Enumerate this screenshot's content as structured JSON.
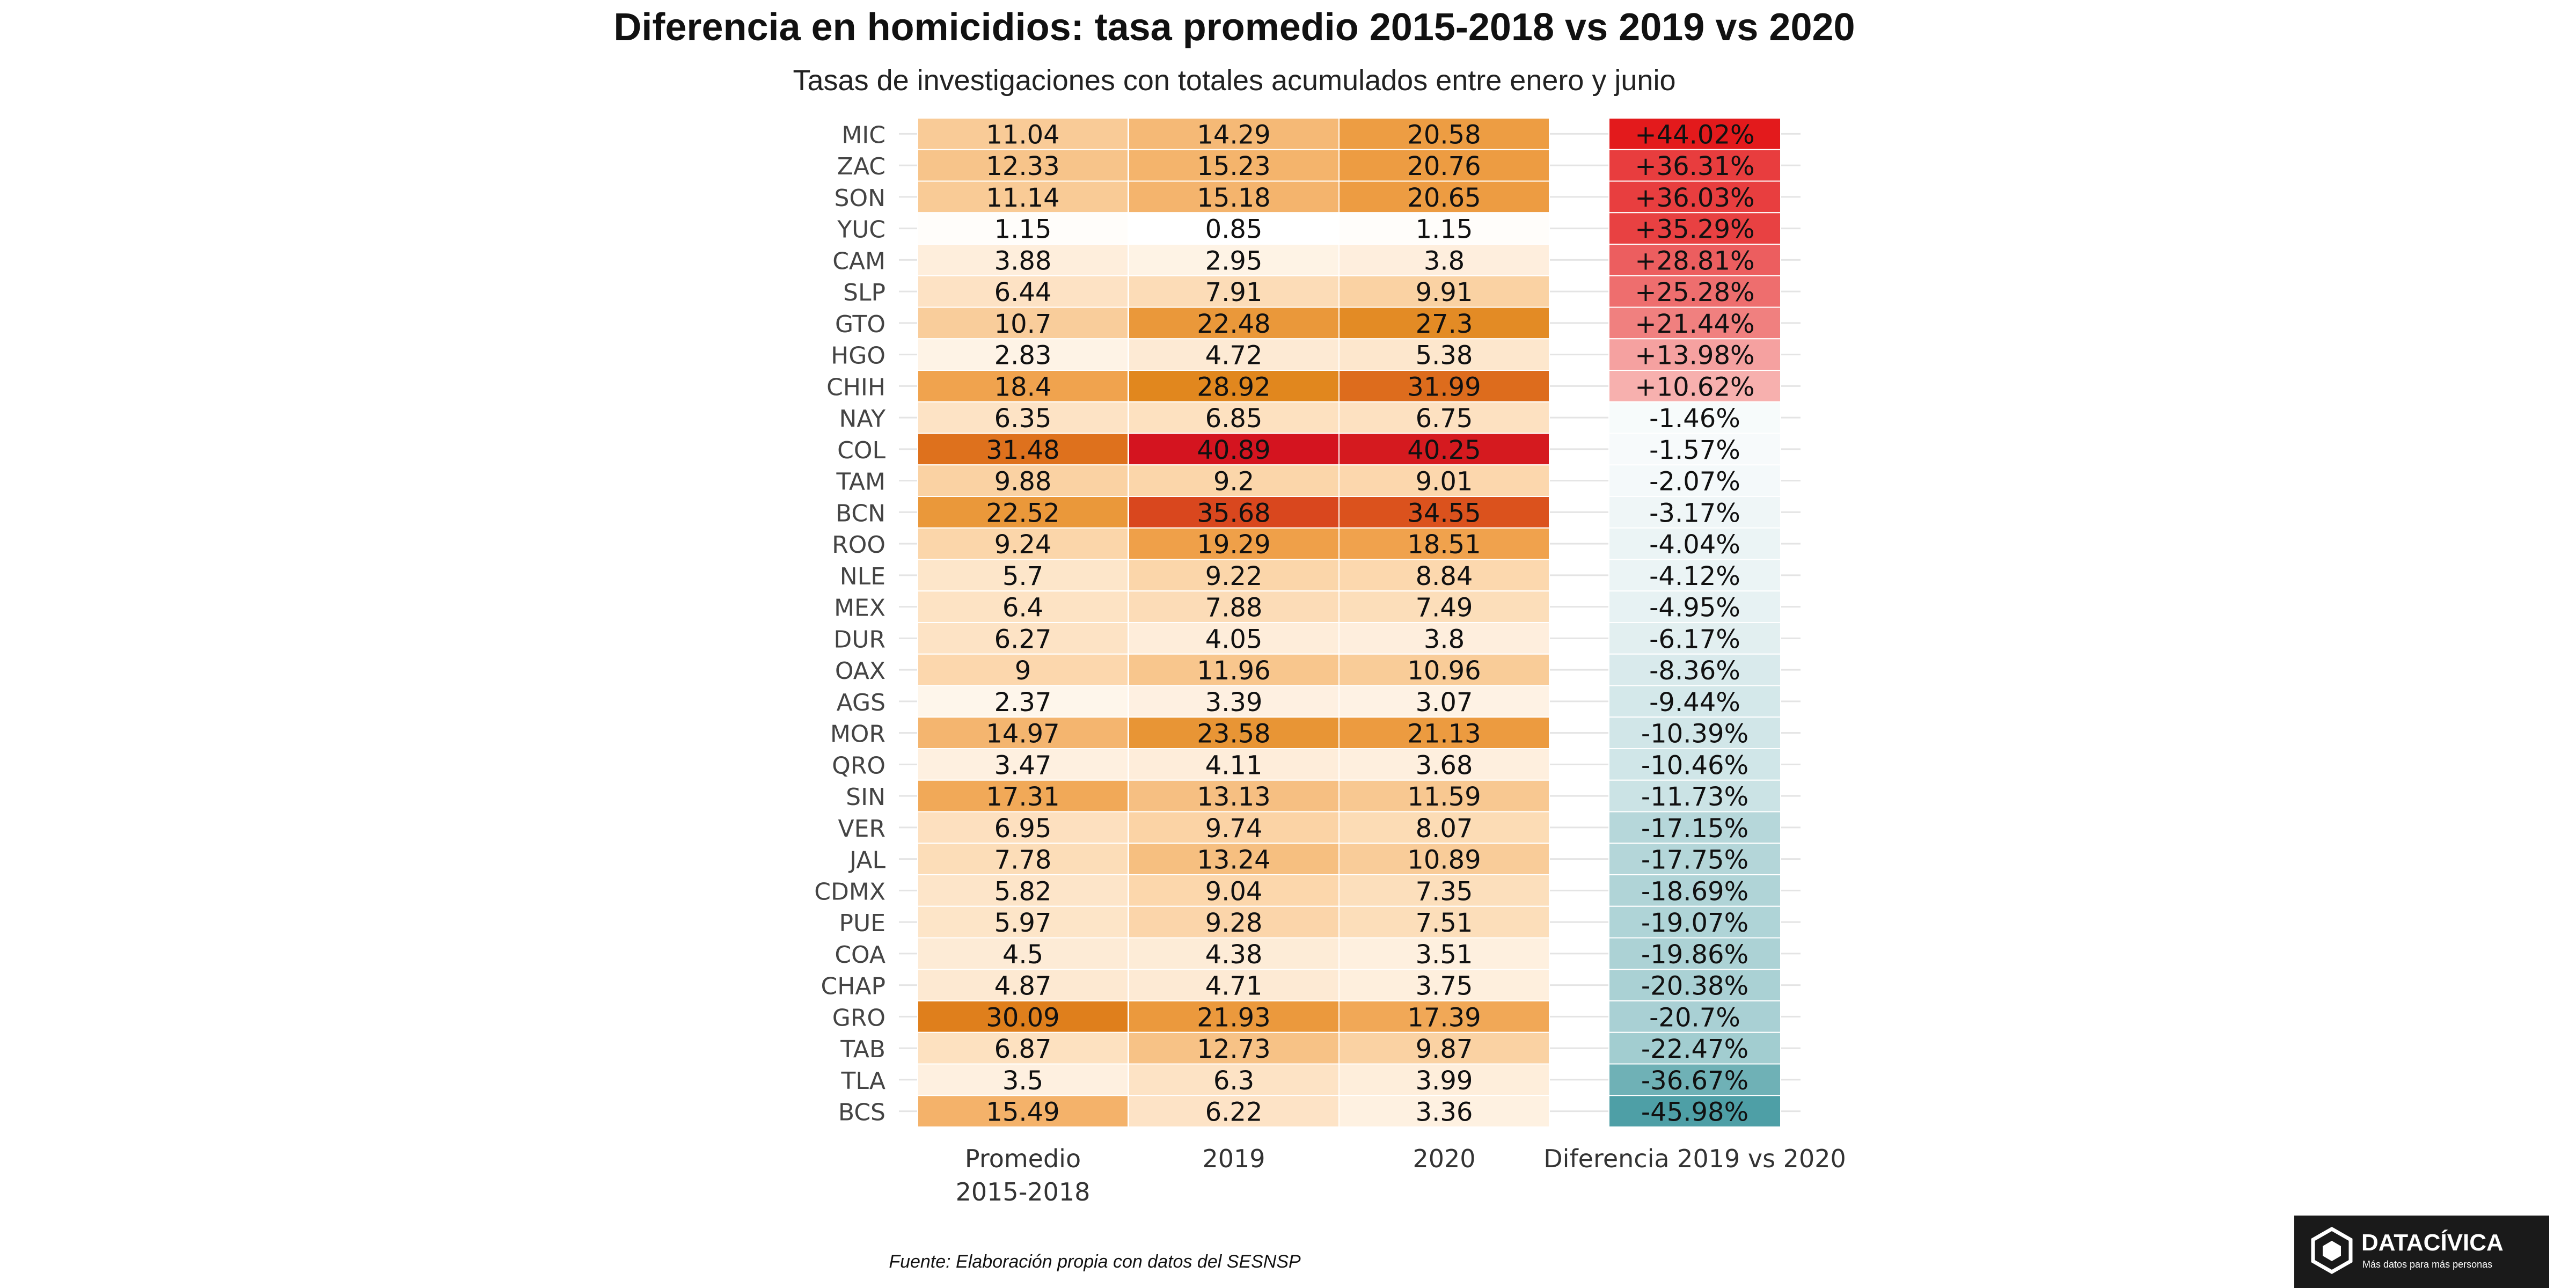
{
  "chart_data": {
    "type": "heatmap",
    "title": "Diferencia en homicidios: tasa promedio 2015-2018 vs 2019 vs 2020",
    "subtitle": "Tasas de investigaciones con totales acumulados entre enero y junio",
    "columns": [
      "Promedio\n2015-2018",
      "2019",
      "2020"
    ],
    "diff_column": "Diferencia 2019 vs 2020",
    "rows": [
      {
        "state": "MIC",
        "values": [
          11.04,
          14.29,
          20.58
        ],
        "diff": 44.02,
        "diff_label": "+44.02%"
      },
      {
        "state": "ZAC",
        "values": [
          12.33,
          15.23,
          20.76
        ],
        "diff": 36.31,
        "diff_label": "+36.31%"
      },
      {
        "state": "SON",
        "values": [
          11.14,
          15.18,
          20.65
        ],
        "diff": 36.03,
        "diff_label": "+36.03%"
      },
      {
        "state": "YUC",
        "values": [
          1.15,
          0.85,
          1.15
        ],
        "diff": 35.29,
        "diff_label": "+35.29%"
      },
      {
        "state": "CAM",
        "values": [
          3.88,
          2.95,
          3.8
        ],
        "diff": 28.81,
        "diff_label": "+28.81%"
      },
      {
        "state": "SLP",
        "values": [
          6.44,
          7.91,
          9.91
        ],
        "diff": 25.28,
        "diff_label": "+25.28%"
      },
      {
        "state": "GTO",
        "values": [
          10.7,
          22.48,
          27.3
        ],
        "diff": 21.44,
        "diff_label": "+21.44%"
      },
      {
        "state": "HGO",
        "values": [
          2.83,
          4.72,
          5.38
        ],
        "diff": 13.98,
        "diff_label": "+13.98%"
      },
      {
        "state": "CHIH",
        "values": [
          18.4,
          28.92,
          31.99
        ],
        "diff": 10.62,
        "diff_label": "+10.62%"
      },
      {
        "state": "NAY",
        "values": [
          6.35,
          6.85,
          6.75
        ],
        "diff": -1.46,
        "diff_label": "-1.46%"
      },
      {
        "state": "COL",
        "values": [
          31.48,
          40.89,
          40.25
        ],
        "diff": -1.57,
        "diff_label": "-1.57%"
      },
      {
        "state": "TAM",
        "values": [
          9.88,
          9.2,
          9.01
        ],
        "diff": -2.07,
        "diff_label": "-2.07%"
      },
      {
        "state": "BCN",
        "values": [
          22.52,
          35.68,
          34.55
        ],
        "diff": -3.17,
        "diff_label": "-3.17%"
      },
      {
        "state": "ROO",
        "values": [
          9.24,
          19.29,
          18.51
        ],
        "diff": -4.04,
        "diff_label": "-4.04%"
      },
      {
        "state": "NLE",
        "values": [
          5.7,
          9.22,
          8.84
        ],
        "diff": -4.12,
        "diff_label": "-4.12%"
      },
      {
        "state": "MEX",
        "values": [
          6.4,
          7.88,
          7.49
        ],
        "diff": -4.95,
        "diff_label": "-4.95%"
      },
      {
        "state": "DUR",
        "values": [
          6.27,
          4.05,
          3.8
        ],
        "diff": -6.17,
        "diff_label": "-6.17%"
      },
      {
        "state": "OAX",
        "values": [
          9,
          11.96,
          10.96
        ],
        "diff": -8.36,
        "diff_label": "-8.36%"
      },
      {
        "state": "AGS",
        "values": [
          2.37,
          3.39,
          3.07
        ],
        "diff": -9.44,
        "diff_label": "-9.44%"
      },
      {
        "state": "MOR",
        "values": [
          14.97,
          23.58,
          21.13
        ],
        "diff": -10.39,
        "diff_label": "-10.39%"
      },
      {
        "state": "QRO",
        "values": [
          3.47,
          4.11,
          3.68
        ],
        "diff": -10.46,
        "diff_label": "-10.46%"
      },
      {
        "state": "SIN",
        "values": [
          17.31,
          13.13,
          11.59
        ],
        "diff": -11.73,
        "diff_label": "-11.73%"
      },
      {
        "state": "VER",
        "values": [
          6.95,
          9.74,
          8.07
        ],
        "diff": -17.15,
        "diff_label": "-17.15%"
      },
      {
        "state": "JAL",
        "values": [
          7.78,
          13.24,
          10.89
        ],
        "diff": -17.75,
        "diff_label": "-17.75%"
      },
      {
        "state": "CDMX",
        "values": [
          5.82,
          9.04,
          7.35
        ],
        "diff": -18.69,
        "diff_label": "-18.69%"
      },
      {
        "state": "PUE",
        "values": [
          5.97,
          9.28,
          7.51
        ],
        "diff": -19.07,
        "diff_label": "-19.07%"
      },
      {
        "state": "COA",
        "values": [
          4.5,
          4.38,
          3.51
        ],
        "diff": -19.86,
        "diff_label": "-19.86%"
      },
      {
        "state": "CHAP",
        "values": [
          4.87,
          4.71,
          3.75
        ],
        "diff": -20.38,
        "diff_label": "-20.38%"
      },
      {
        "state": "GRO",
        "values": [
          30.09,
          21.93,
          17.39
        ],
        "diff": -20.7,
        "diff_label": "-20.7%"
      },
      {
        "state": "TAB",
        "values": [
          6.87,
          12.73,
          9.87
        ],
        "diff": -22.47,
        "diff_label": "-22.47%"
      },
      {
        "state": "TLA",
        "values": [
          3.5,
          6.3,
          3.99
        ],
        "diff": -36.67,
        "diff_label": "-36.67%"
      },
      {
        "state": "BCS",
        "values": [
          15.49,
          6.22,
          3.36
        ],
        "diff": -45.98,
        "diff_label": "-45.98%"
      }
    ],
    "value_scale": {
      "min": 0.85,
      "max": 40.89,
      "colors": [
        "#ffffff",
        "#fcd9b0",
        "#f0a24c",
        "#e0861c",
        "#d4141f"
      ]
    },
    "diff_scale": {
      "positive_colors": [
        "#fde0dd",
        "#e31a1c"
      ],
      "negative_colors": [
        "#ffffff",
        "#4e9fa6"
      ]
    },
    "source": "Fuente: Elaboración propia con datos del SESNSP"
  },
  "logo": {
    "name": "DATACÍVICA",
    "tagline": "Más datos para más personas"
  }
}
